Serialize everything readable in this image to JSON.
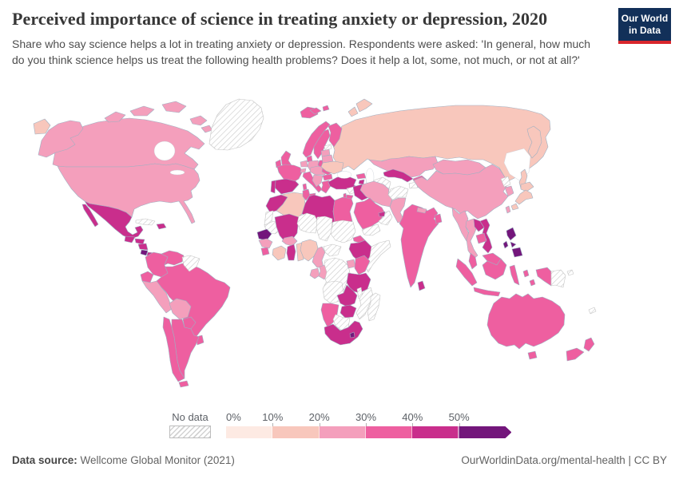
{
  "header": {
    "title": "Perceived importance of science in treating anxiety or depression, 2020",
    "subtitle": "Share who say science helps a lot in treating anxiety or depression. Respondents were asked: 'In general, how much do you think science helps us treat the following health problems? Does it help a lot, some, not much, or not at all?'",
    "logo": {
      "line1": "Our World",
      "line2": "in Data",
      "bg_color": "#123059",
      "stripe_color": "#d8262c"
    }
  },
  "legend": {
    "no_data_label": "No data",
    "tick_labels": [
      "0%",
      "10%",
      "20%",
      "30%",
      "40%",
      "50%"
    ]
  },
  "footer": {
    "source_label": "Data source:",
    "source_value": " Wellcome Global Monitor (2021)",
    "right_text": "OurWorldinData.org/mental-health | CC BY"
  },
  "chart_data": {
    "type": "choropleth-map",
    "title": "Perceived importance of science in treating anxiety or depression",
    "year": 2020,
    "unit": "share of respondents who say science helps a lot (%)",
    "legend_position": "bottom",
    "border_color": "#9fb0c2",
    "no_data_border_color": "#c4c4c4",
    "bins": [
      {
        "label": "0-10%",
        "color": "#fdeae3"
      },
      {
        "label": "10-20%",
        "color": "#f8c7bc"
      },
      {
        "label": "20-30%",
        "color": "#f49fbc"
      },
      {
        "label": "30-40%",
        "color": "#ee5fa0"
      },
      {
        "label": "40-50%",
        "color": "#c92e8c"
      },
      {
        "label": "50%+",
        "color": "#73167b"
      }
    ],
    "no_data": {
      "label": "No data",
      "fill": "hatch"
    },
    "countries": {
      "Russia": "10-20%",
      "Canada": "20-30%",
      "United States": "20-30%",
      "Greenland": "No data",
      "Iceland": "30-40%",
      "Mexico": "40-50%",
      "Guatemala": "40-50%",
      "Honduras": "40-50%",
      "Nicaragua": "40-50%",
      "Costa Rica": "50%+",
      "Panama": "40-50%",
      "Cuba": "No data",
      "Dominican Republic": "40-50%",
      "Colombia": "30-40%",
      "Venezuela": "30-40%",
      "Guyana": "No data",
      "Ecuador": "30-40%",
      "Peru": "20-30%",
      "Bolivia": "20-30%",
      "Brazil": "30-40%",
      "Paraguay": "30-40%",
      "Uruguay": "30-40%",
      "Argentina": "30-40%",
      "Chile": "30-40%",
      "Norway": "30-40%",
      "Sweden": "30-40%",
      "Finland": "30-40%",
      "Denmark": "30-40%",
      "United Kingdom": "30-40%",
      "Ireland": "30-40%",
      "France": "30-40%",
      "Spain": "40-50%",
      "Portugal": "40-50%",
      "Germany": "20-30%",
      "Netherlands": "20-30%",
      "Poland": "30-40%",
      "Italy": "30-40%",
      "Switzerland": "20-30%",
      "Central Europe": "20-30%",
      "Balkans": "20-30%",
      "Romania": "30-40%",
      "Bulgaria": "30-40%",
      "Greece": "30-40%",
      "Ukraine": "10-20%",
      "Belarus": "20-30%",
      "Baltics": "20-30%",
      "Estonia": "No data",
      "Turkey": "40-50%",
      "Georgia": "30-40%",
      "Azerbaijan": "40-50%",
      "Armenia": "40-50%",
      "Syria": "No data",
      "Iraq": "40-50%",
      "Iran": "20-30%",
      "Saudi Arabia": "30-40%",
      "Yemen": "No data",
      "Oman": "No data",
      "United Arab Emirates": "40-50%",
      "Jordan": "30-40%",
      "Israel": "30-40%",
      "Kazakhstan": "20-30%",
      "Uzbekistan": "40-50%",
      "Kyrgyzstan": "30-40%",
      "Tajikistan": "No data",
      "Turkmenistan": "No data",
      "Afghanistan": "No data",
      "Pakistan": "20-30%",
      "India": "30-40%",
      "Nepal": "20-30%",
      "Bangladesh": "30-40%",
      "Sri Lanka": "40-50%",
      "Myanmar": "20-30%",
      "Thailand": "20-30%",
      "Laos": "40-50%",
      "Cambodia": "30-40%",
      "Vietnam": "40-50%",
      "Malaysia": "30-40%",
      "Indonesia": "30-40%",
      "Philippines": "50%+",
      "China": "20-30%",
      "Mongolia": "20-30%",
      "North Korea": "No data",
      "South Korea": "20-30%",
      "Taiwan": "20-30%",
      "Japan": "10-20%",
      "Papua New Guinea": "No data",
      "Australia": "30-40%",
      "New Zealand": "30-40%",
      "New Caledonia": "No data",
      "Morocco": "40-50%",
      "Western Sahara": "No data",
      "Algeria": "10-20%",
      "Tunisia": "30-40%",
      "Libya": "40-50%",
      "Egypt": "30-40%",
      "Mauritania": "No data",
      "Mali": "40-50%",
      "Niger": "No data",
      "Chad": "No data",
      "Sudan": "No data",
      "Eritrea": "30-40%",
      "Ethiopia": "40-50%",
      "Somalia": "No data",
      "Senegal": "50%+",
      "Guinea": "20-30%",
      "Sierra Leone": "30-40%",
      "Ivory Coast": "10-20%",
      "Burkina Faso": "20-30%",
      "Ghana": "40-50%",
      "Benin": "10-20%",
      "Nigeria": "10-20%",
      "Cameroon": "20-30%",
      "Central African Republic": "No data",
      "Gabon": "20-30%",
      "Republic of the Congo": "20-30%",
      "DR Congo": "No data",
      "Uganda": "20-30%",
      "Kenya": "30-40%",
      "Tanzania": "40-50%",
      "Angola": "No data",
      "Zambia": "40-50%",
      "Malawi": "No data",
      "Mozambique": "No data",
      "Zimbabwe": "40-50%",
      "Namibia": "30-40%",
      "Botswana": "No data",
      "South Africa": "40-50%",
      "Lesotho": "50%+",
      "Madagascar": "No data"
    }
  }
}
